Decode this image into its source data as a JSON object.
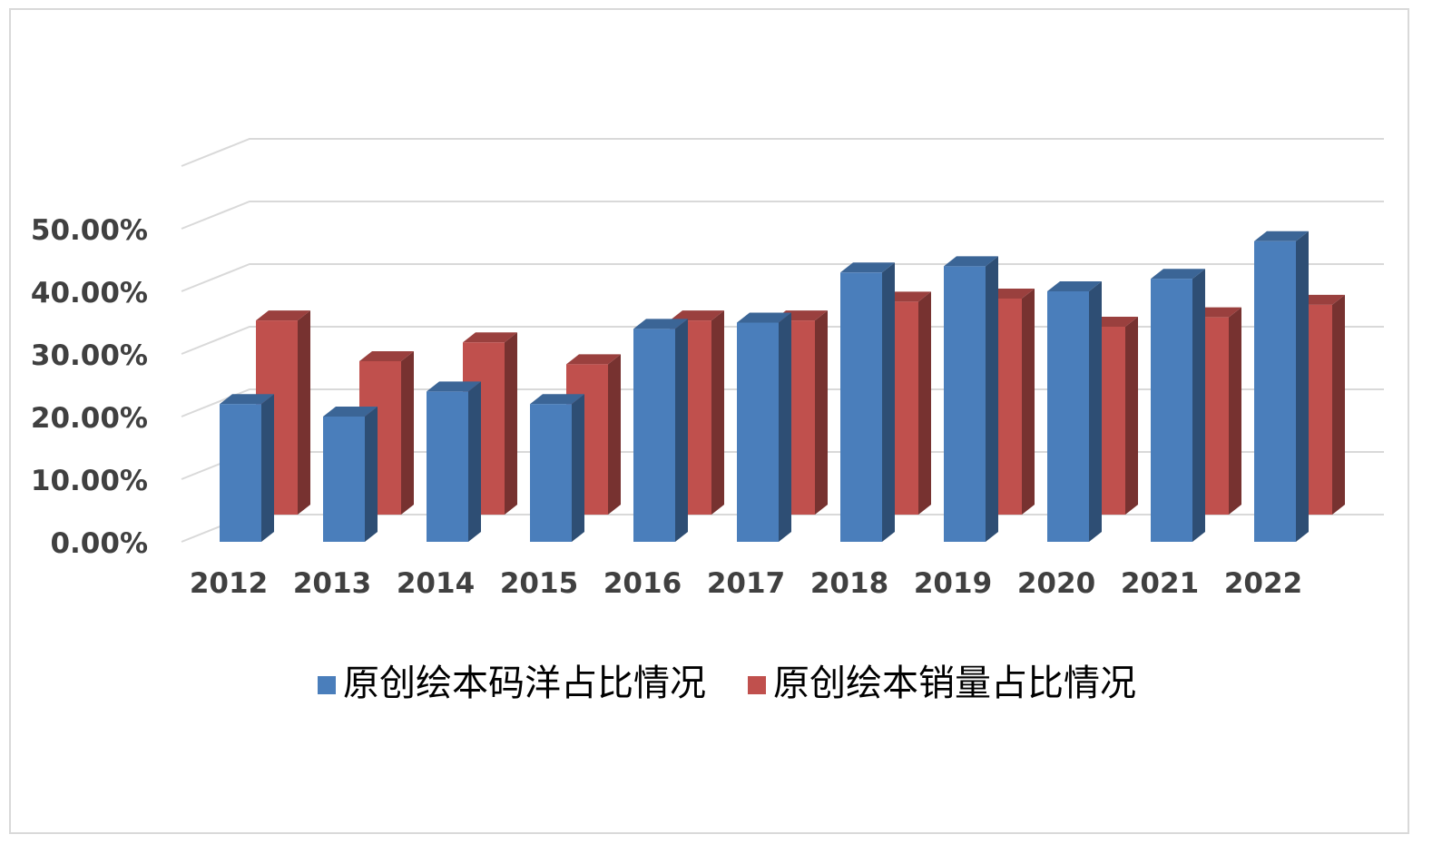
{
  "chart_data": {
    "type": "bar",
    "style": "3d-clustered-column",
    "categories": [
      "2012",
      "2013",
      "2014",
      "2015",
      "2016",
      "2017",
      "2018",
      "2019",
      "2020",
      "2021",
      "2022"
    ],
    "series": [
      {
        "name": "原创绘本码洋占比情况",
        "color": "#4a7ebb",
        "values": [
          22,
          20,
          24,
          22,
          34,
          35,
          43,
          44,
          40,
          42,
          48
        ]
      },
      {
        "name": "原创绘本销量占比情况",
        "color": "#c0504d",
        "values": [
          31,
          24.5,
          27.5,
          24,
          31,
          31,
          34,
          34.5,
          30,
          31.5,
          33.5
        ]
      }
    ],
    "ylim": [
      0,
      50
    ],
    "yticks": [
      "0.00%",
      "10.00%",
      "20.00%",
      "30.00%",
      "40.00%",
      "50.00%"
    ],
    "grid": true,
    "legend_position": "bottom"
  }
}
